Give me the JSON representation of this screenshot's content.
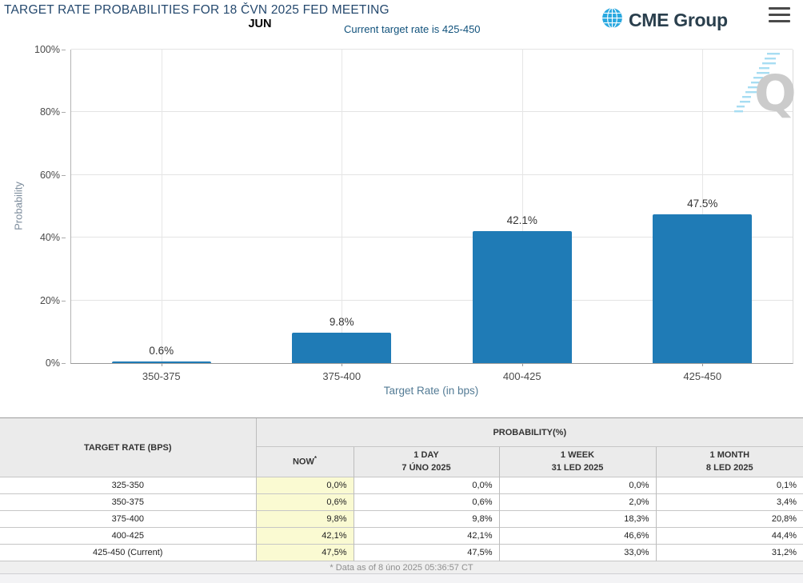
{
  "header": {
    "title": "TARGET RATE PROBABILITIES FOR 18 ČVN 2025 FED MEETING",
    "month_label": "JUN",
    "current_rate_note": "Current target rate is 425-450",
    "logo_text": "CME Group",
    "logo_globe_color": "#29a8e0",
    "logo_text_color": "#2a3f4d"
  },
  "chart_data": {
    "type": "bar",
    "categories": [
      "350-375",
      "375-400",
      "400-425",
      "425-450"
    ],
    "values": [
      0.6,
      9.8,
      42.1,
      47.5
    ],
    "bar_labels": [
      "0.6%",
      "9.8%",
      "42.1%",
      "47.5%"
    ],
    "xlabel": "Target Rate (in bps)",
    "ylabel": "Probability",
    "ylim": [
      0,
      100
    ],
    "yticks": [
      0,
      20,
      40,
      60,
      80,
      100
    ],
    "ytick_labels": [
      "0%",
      "20%",
      "40%",
      "60%",
      "80%",
      "100%"
    ],
    "bar_color": "#1f7bb6",
    "grid": true,
    "legend": "none",
    "watermark_letter": "Q"
  },
  "table": {
    "col1_header": "TARGET RATE (BPS)",
    "group_header": "PROBABILITY(%)",
    "sub_headers": [
      {
        "line1": "NOW",
        "sup": "*",
        "line2": ""
      },
      {
        "line1": "1 DAY",
        "line2": "7 ÚNO 2025"
      },
      {
        "line1": "1 WEEK",
        "line2": "31 LED 2025"
      },
      {
        "line1": "1 MONTH",
        "line2": "8 LED 2025"
      }
    ],
    "rows": [
      {
        "rate": "325-350",
        "now": "0,0%",
        "day": "0,0%",
        "week": "0,0%",
        "month": "0,1%"
      },
      {
        "rate": "350-375",
        "now": "0,6%",
        "day": "0,6%",
        "week": "2,0%",
        "month": "3,4%"
      },
      {
        "rate": "375-400",
        "now": "9,8%",
        "day": "9,8%",
        "week": "18,3%",
        "month": "20,8%"
      },
      {
        "rate": "400-425",
        "now": "42,1%",
        "day": "42,1%",
        "week": "46,6%",
        "month": "44,4%"
      },
      {
        "rate": "425-450 (Current)",
        "now": "47,5%",
        "day": "47,5%",
        "week": "33,0%",
        "month": "31,2%"
      }
    ],
    "footnote": "* Data as of 8 úno 2025 05:36:57 CT",
    "now_highlight_color": "#fafad2"
  }
}
